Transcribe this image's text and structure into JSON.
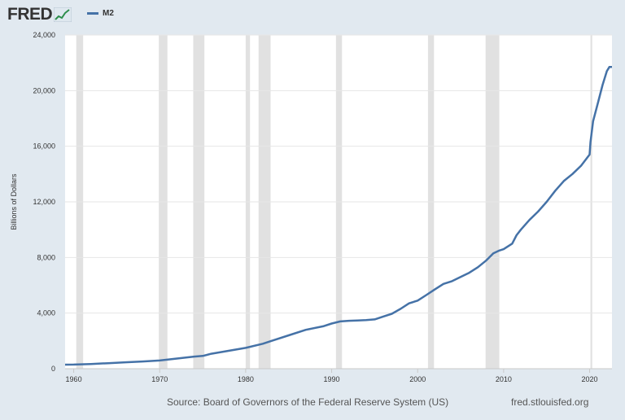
{
  "header": {
    "logo_text": "FRED",
    "logo_icon": "fred-graph-icon"
  },
  "footer": {
    "source": "Source: Board of Governors of the Federal Reserve System (US)",
    "site": "fred.stlouisfed.org"
  },
  "colors": {
    "series": "#4572a7",
    "recession": "#e1e1e1",
    "background": "#e1e9f0",
    "plot": "#ffffff",
    "grid": "#e6e6e6"
  },
  "chart_data": {
    "type": "line",
    "title": "",
    "xlabel": "",
    "ylabel": "Billions of Dollars",
    "xlim": [
      1959.0,
      2022.6
    ],
    "ylim": [
      0,
      24000
    ],
    "y_ticks": [
      0,
      4000,
      8000,
      12000,
      16000,
      20000,
      24000
    ],
    "y_tick_labels": [
      "0",
      "4,000",
      "8,000",
      "12,000",
      "16,000",
      "20,000",
      "24,000"
    ],
    "x_ticks": [
      1960,
      1970,
      1980,
      1990,
      2000,
      2010,
      2020
    ],
    "x_tick_labels": [
      "1960",
      "1970",
      "1980",
      "1990",
      "2000",
      "2010",
      "2020"
    ],
    "grid": true,
    "legend_position": "top-left",
    "recessions": [
      [
        1960.3,
        1961.1
      ],
      [
        1969.9,
        1970.9
      ],
      [
        1973.9,
        1975.2
      ],
      [
        1980.0,
        1980.5
      ],
      [
        1981.5,
        1982.9
      ],
      [
        1990.5,
        1991.2
      ],
      [
        2001.2,
        2001.9
      ],
      [
        2007.9,
        2009.5
      ],
      [
        2020.1,
        2020.3
      ]
    ],
    "series": [
      {
        "name": "M2",
        "x": [
          1959.0,
          1960.0,
          1962.0,
          1964.0,
          1966.0,
          1968.0,
          1970.0,
          1972.0,
          1974.0,
          1975.0,
          1976.0,
          1978.0,
          1980.0,
          1982.0,
          1983.0,
          1985.0,
          1987.0,
          1989.0,
          1990.0,
          1991.0,
          1992.0,
          1993.0,
          1994.0,
          1995.0,
          1996.0,
          1997.0,
          1998.0,
          1999.0,
          2000.0,
          2001.0,
          2002.0,
          2003.0,
          2004.0,
          2005.0,
          2006.0,
          2007.0,
          2008.0,
          2008.8,
          2009.5,
          2010.0,
          2011.0,
          2011.5,
          2012.0,
          2013.0,
          2014.0,
          2015.0,
          2016.0,
          2017.0,
          2018.0,
          2019.0,
          2020.0,
          2020.1,
          2020.4,
          2021.0,
          2021.5,
          2022.0,
          2022.3,
          2022.6
        ],
        "values": [
          290,
          300,
          340,
          400,
          460,
          520,
          590,
          730,
          870,
          920,
          1080,
          1290,
          1500,
          1800,
          2000,
          2400,
          2800,
          3050,
          3250,
          3400,
          3450,
          3470,
          3500,
          3550,
          3750,
          3950,
          4300,
          4700,
          4900,
          5300,
          5700,
          6100,
          6300,
          6600,
          6900,
          7300,
          7800,
          8300,
          8500,
          8600,
          9000,
          9600,
          10000,
          10700,
          11300,
          12000,
          12800,
          13500,
          14000,
          14600,
          15400,
          16300,
          17800,
          19200,
          20400,
          21400,
          21700,
          21700
        ]
      }
    ]
  }
}
